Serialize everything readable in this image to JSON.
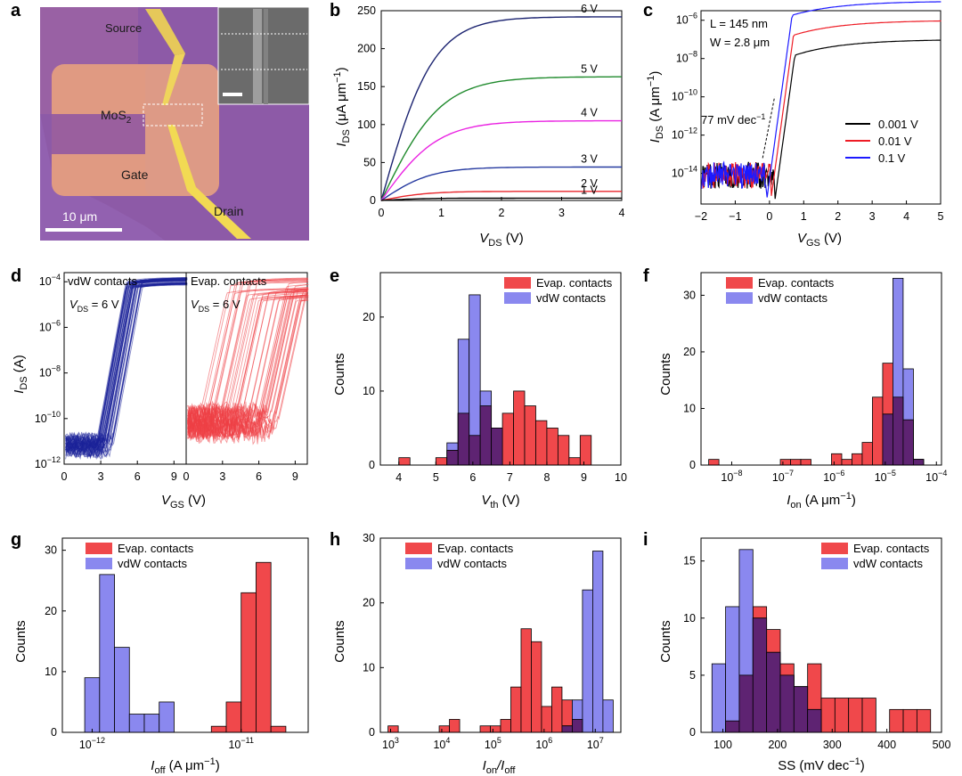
{
  "colors": {
    "evap": "#f0484b",
    "vdw": "#8a88ef",
    "overlap": "#5e2372",
    "dev": "#28337e",
    "c_black": "#000000",
    "c_red": "#ee1c25",
    "c_blue": "#1d1aff",
    "d_vdw": "#1c2299",
    "d_evap": "#ee3f46",
    "b_6": "#1b2370",
    "b_5": "#1f8a2c",
    "b_4": "#ea23e2",
    "b_3": "#263aa0",
    "b_2": "#e8262c",
    "b_1": "#000000"
  },
  "panels": {
    "a": {
      "label": "a",
      "texts": {
        "source": "Source",
        "mos2": "MoS",
        "mos2_sub": "2",
        "gate": "Gate",
        "drain": "Drain",
        "scale": "10 μm"
      }
    },
    "b": {
      "label": "b"
    },
    "c": {
      "label": "c"
    },
    "d": {
      "label": "d"
    },
    "e": {
      "label": "e"
    },
    "f": {
      "label": "f"
    },
    "g": {
      "label": "g"
    },
    "h": {
      "label": "h"
    },
    "i": {
      "label": "i"
    }
  },
  "chart_data": [
    {
      "id": "b",
      "type": "line",
      "xlabel": "V",
      "xlabel_sub": "DS",
      "xlabel_unit": " (V)",
      "ylabel": "I",
      "ylabel_sub": "DS",
      "ylabel_unit": " (μA μm",
      "ylabel_sup": "−1",
      "ylabel_close": ")",
      "xlim": [
        0,
        4
      ],
      "ylim": [
        0,
        250
      ],
      "xticks": [
        "0",
        "1",
        "2",
        "3",
        "4"
      ],
      "yticks": [
        "0",
        "50",
        "100",
        "150",
        "200",
        "250"
      ],
      "series": [
        {
          "name": "6 V",
          "sat": 242,
          "k": 1.15,
          "color_key": "b_6"
        },
        {
          "name": "5 V",
          "sat": 163,
          "k": 1.0,
          "color_key": "b_5"
        },
        {
          "name": "4 V",
          "sat": 105,
          "k": 1.05,
          "color_key": "b_4"
        },
        {
          "name": "3 V",
          "sat": 44,
          "k": 1.2,
          "color_key": "b_3"
        },
        {
          "name": "2 V",
          "sat": 12,
          "k": 1.3,
          "color_key": "b_2"
        },
        {
          "name": "1 V",
          "sat": 3,
          "k": 1.5,
          "color_key": "b_1"
        }
      ]
    },
    {
      "id": "c",
      "type": "line",
      "yscale": "log",
      "xlabel": "V",
      "xlabel_sub": "GS",
      "xlabel_unit": " (V)",
      "ylabel": "I",
      "ylabel_sub": "DS",
      "ylabel_unit": " (A μm",
      "ylabel_sup": "−1",
      "ylabel_close": ")",
      "xlim": [
        -2,
        5
      ],
      "ylim_log10": [
        -15.6,
        -5.5
      ],
      "xticks": [
        "−2",
        "−1",
        "0",
        "1",
        "2",
        "3",
        "4",
        "5"
      ],
      "yticks": [
        {
          "base": "10",
          "exp": "−14"
        },
        {
          "base": "10",
          "exp": "−12"
        },
        {
          "base": "10",
          "exp": "−10"
        },
        {
          "base": "10",
          "exp": "−8"
        },
        {
          "base": "10",
          "exp": "−6"
        }
      ],
      "annotations": {
        "length": "L = 145 nm",
        "width": "W = 2.8 μm",
        "ss": "77 mV dec",
        "ss_sup": "−1"
      },
      "series": [
        {
          "name": "0.001 V",
          "vt": 0.12,
          "sat_log": -7.0,
          "color_key": "c_black"
        },
        {
          "name": "0.01 V",
          "vt": 0.0,
          "sat_log": -6.0,
          "color_key": "c_red"
        },
        {
          "name": "0.1 V",
          "vt": -0.12,
          "sat_log": -5.0,
          "color_key": "c_blue"
        }
      ]
    },
    {
      "id": "d",
      "type": "line",
      "yscale": "log",
      "xlabel": "V",
      "xlabel_sub": "GS",
      "xlabel_unit": " (V)",
      "ylabel": "I",
      "ylabel_sub": "DS",
      "ylabel_unit": " (A)",
      "xlim": [
        0,
        10
      ],
      "ylim_log10": [
        -12,
        -3.6
      ],
      "xticks": [
        "0",
        "3",
        "6",
        "9"
      ],
      "yticks": [
        {
          "base": "10",
          "exp": "−12"
        },
        {
          "base": "10",
          "exp": "−10"
        },
        {
          "base": "10",
          "exp": "−8"
        },
        {
          "base": "10",
          "exp": "−6"
        },
        {
          "base": "10",
          "exp": "−4"
        }
      ],
      "subpanels": [
        {
          "title": "vdW contacts",
          "vds": "V",
          "vds_sub": "DS",
          "vds_val": " = 6 V",
          "color_key": "d_vdw",
          "vt_range": [
            2.6,
            4.0
          ],
          "off_log": -11.2
        },
        {
          "title": "Evap. contacts",
          "vds": "V",
          "vds_sub": "DS",
          "vds_val": " = 6 V",
          "color_key": "d_evap",
          "vt_range": [
            1.0,
            7.5
          ],
          "off_log": -10.2
        }
      ]
    },
    {
      "id": "e",
      "type": "histogram",
      "xlabel": "V",
      "xlabel_sub": "th",
      "xlabel_unit": " (V)",
      "ylabel": "Counts",
      "xlim": [
        3.5,
        10
      ],
      "ylim": [
        0,
        26
      ],
      "xticks": [
        {
          "v": 4,
          "t": "4"
        },
        {
          "v": 5,
          "t": "5"
        },
        {
          "v": 6,
          "t": "6"
        },
        {
          "v": 7,
          "t": "7"
        },
        {
          "v": 8,
          "t": "8"
        },
        {
          "v": 9,
          "t": "9"
        },
        {
          "v": 10,
          "t": "10"
        }
      ],
      "yticks": [
        {
          "v": 0,
          "t": "0"
        },
        {
          "v": 10,
          "t": "10"
        },
        {
          "v": 20,
          "t": "20"
        }
      ],
      "series": [
        {
          "name": "Evap. contacts",
          "color_key": "evap",
          "bins": [
            [
              4.0,
              4.3,
              1
            ],
            [
              5.0,
              5.3,
              1
            ],
            [
              5.3,
              5.6,
              2
            ],
            [
              5.6,
              5.9,
              7
            ],
            [
              5.9,
              6.2,
              4
            ],
            [
              6.2,
              6.5,
              8
            ],
            [
              6.5,
              6.8,
              5
            ],
            [
              6.8,
              7.1,
              7
            ],
            [
              7.1,
              7.4,
              10
            ],
            [
              7.4,
              7.7,
              8
            ],
            [
              7.7,
              8.0,
              6
            ],
            [
              8.0,
              8.3,
              5
            ],
            [
              8.3,
              8.6,
              4
            ],
            [
              8.6,
              8.9,
              1
            ],
            [
              8.9,
              9.2,
              4
            ]
          ]
        },
        {
          "name": "vdW contacts",
          "color_key": "vdw",
          "bins": [
            [
              5.3,
              5.6,
              3
            ],
            [
              5.6,
              5.9,
              17
            ],
            [
              5.9,
              6.2,
              23
            ],
            [
              6.2,
              6.5,
              10
            ],
            [
              6.5,
              6.8,
              5
            ]
          ]
        }
      ]
    },
    {
      "id": "f",
      "type": "histogram",
      "xscale": "log",
      "xlabel": "I",
      "xlabel_sub": "on",
      "xlabel_unit": " (A μm",
      "xlabel_sup": "−1",
      "xlabel_close": ")",
      "ylabel": "Counts",
      "xlim": [
        -8.6,
        -3.9
      ],
      "ylim": [
        0,
        34
      ],
      "xticks": [
        {
          "v": -8,
          "t": "10",
          "sup": "−8"
        },
        {
          "v": -7,
          "t": "10",
          "sup": "−7"
        },
        {
          "v": -6,
          "t": "10",
          "sup": "−6"
        },
        {
          "v": -5,
          "t": "10",
          "sup": "−5"
        },
        {
          "v": -4,
          "t": "10",
          "sup": "−4"
        }
      ],
      "yticks": [
        {
          "v": 0,
          "t": "0"
        },
        {
          "v": 10,
          "t": "10"
        },
        {
          "v": 20,
          "t": "20"
        },
        {
          "v": 30,
          "t": "30"
        }
      ],
      "series": [
        {
          "name": "Evap. contacts",
          "color_key": "evap",
          "bins": [
            [
              -8.45,
              -8.25,
              1
            ],
            [
              -7.05,
              -6.85,
              1
            ],
            [
              -6.85,
              -6.65,
              1
            ],
            [
              -6.65,
              -6.45,
              1
            ],
            [
              -6.05,
              -5.85,
              2
            ],
            [
              -5.85,
              -5.65,
              1
            ],
            [
              -5.65,
              -5.45,
              2
            ],
            [
              -5.45,
              -5.25,
              4
            ],
            [
              -5.25,
              -5.05,
              12
            ],
            [
              -5.05,
              -4.85,
              18
            ],
            [
              -4.85,
              -4.65,
              12
            ],
            [
              -4.65,
              -4.45,
              8
            ],
            [
              -4.45,
              -4.25,
              1
            ]
          ]
        },
        {
          "name": "vdW contacts",
          "color_key": "vdw",
          "bins": [
            [
              -5.05,
              -4.85,
              9
            ],
            [
              -4.85,
              -4.65,
              33
            ],
            [
              -4.65,
              -4.45,
              17
            ],
            [
              -4.45,
              -4.25,
              1
            ]
          ]
        }
      ]
    },
    {
      "id": "g",
      "type": "histogram",
      "xscale": "log",
      "xlabel": "I",
      "xlabel_sub": "off",
      "xlabel_unit": " (A μm",
      "xlabel_sup": "−1",
      "xlabel_close": ")",
      "ylabel": "Counts",
      "xlim": [
        -12.2,
        -10.55
      ],
      "ylim": [
        0,
        32
      ],
      "xticks": [
        {
          "v": -12,
          "t": "10",
          "sup": "−12"
        },
        {
          "v": -11,
          "t": "10",
          "sup": "−11"
        }
      ],
      "yticks": [
        {
          "v": 0,
          "t": "0"
        },
        {
          "v": 10,
          "t": "10"
        },
        {
          "v": 20,
          "t": "20"
        },
        {
          "v": 30,
          "t": "30"
        }
      ],
      "series": [
        {
          "name": "Evap. contacts",
          "color_key": "evap",
          "bins": [
            [
              -11.7,
              -11.6,
              2
            ],
            [
              -11.2,
              -11.1,
              1
            ],
            [
              -11.1,
              -11.0,
              5
            ],
            [
              -11.0,
              -10.9,
              23
            ],
            [
              -10.9,
              -10.8,
              28
            ],
            [
              -10.8,
              -10.7,
              1
            ]
          ]
        },
        {
          "name": "vdW contacts",
          "color_key": "vdw",
          "bins": [
            [
              -12.05,
              -11.95,
              9
            ],
            [
              -11.95,
              -11.85,
              26
            ],
            [
              -11.85,
              -11.75,
              14
            ],
            [
              -11.75,
              -11.65,
              3
            ],
            [
              -11.65,
              -11.55,
              3
            ],
            [
              -11.55,
              -11.45,
              5
            ]
          ]
        }
      ]
    },
    {
      "id": "h",
      "type": "histogram",
      "xscale": "log",
      "xlabel": "I",
      "xlabel_sub": "on",
      "xlabel_mid": "/I",
      "xlabel_sub2": "off",
      "ylabel": "Counts",
      "xlim": [
        2.8,
        7.5
      ],
      "ylim": [
        0,
        30
      ],
      "xticks": [
        {
          "v": 3,
          "t": "10",
          "sup": "3"
        },
        {
          "v": 4,
          "t": "10",
          "sup": "4"
        },
        {
          "v": 5,
          "t": "10",
          "sup": "5"
        },
        {
          "v": 6,
          "t": "10",
          "sup": "6"
        },
        {
          "v": 7,
          "t": "10",
          "sup": "7"
        }
      ],
      "yticks": [
        {
          "v": 0,
          "t": "0"
        },
        {
          "v": 10,
          "t": "10"
        },
        {
          "v": 20,
          "t": "20"
        },
        {
          "v": 30,
          "t": "30"
        }
      ],
      "series": [
        {
          "name": "Evap. contacts",
          "color_key": "evap",
          "bins": [
            [
              2.95,
              3.15,
              1
            ],
            [
              3.95,
              4.15,
              1
            ],
            [
              4.15,
              4.35,
              2
            ],
            [
              4.75,
              4.95,
              1
            ],
            [
              4.95,
              5.15,
              1
            ],
            [
              5.15,
              5.35,
              2
            ],
            [
              5.35,
              5.55,
              7
            ],
            [
              5.55,
              5.75,
              16
            ],
            [
              5.75,
              5.95,
              14
            ],
            [
              5.95,
              6.15,
              4
            ],
            [
              6.15,
              6.35,
              7
            ],
            [
              6.35,
              6.55,
              5
            ],
            [
              6.55,
              6.75,
              2
            ]
          ]
        },
        {
          "name": "vdW contacts",
          "color_key": "vdw",
          "bins": [
            [
              6.35,
              6.55,
              1
            ],
            [
              6.55,
              6.75,
              5
            ],
            [
              6.75,
              6.95,
              22
            ],
            [
              6.95,
              7.15,
              28
            ],
            [
              7.15,
              7.35,
              5
            ]
          ]
        }
      ]
    },
    {
      "id": "i",
      "type": "histogram",
      "xlabel": "SS (mV dec",
      "xlabel_sup": "−1",
      "xlabel_close": ")",
      "ylabel": "Counts",
      "xlim": [
        60,
        500
      ],
      "ylim": [
        0,
        17
      ],
      "xticks": [
        {
          "v": 100,
          "t": "100"
        },
        {
          "v": 200,
          "t": "200"
        },
        {
          "v": 300,
          "t": "300"
        },
        {
          "v": 400,
          "t": "400"
        },
        {
          "v": 500,
          "t": "500"
        }
      ],
      "yticks": [
        {
          "v": 0,
          "t": "0"
        },
        {
          "v": 5,
          "t": "5"
        },
        {
          "v": 10,
          "t": "10"
        },
        {
          "v": 15,
          "t": "15"
        }
      ],
      "series": [
        {
          "name": "Evap. contacts",
          "color_key": "evap",
          "bins": [
            [
              105,
              130,
              1
            ],
            [
              130,
              155,
              5
            ],
            [
              155,
              180,
              11
            ],
            [
              180,
              205,
              9
            ],
            [
              205,
              230,
              6
            ],
            [
              230,
              255,
              4
            ],
            [
              255,
              280,
              6
            ],
            [
              280,
              305,
              3
            ],
            [
              305,
              330,
              3
            ],
            [
              330,
              355,
              3
            ],
            [
              355,
              380,
              3
            ],
            [
              405,
              430,
              2
            ],
            [
              430,
              455,
              2
            ],
            [
              455,
              480,
              2
            ]
          ]
        },
        {
          "name": "vdW contacts",
          "color_key": "vdw",
          "bins": [
            [
              80,
              105,
              6
            ],
            [
              105,
              130,
              11
            ],
            [
              130,
              155,
              16
            ],
            [
              155,
              180,
              10
            ],
            [
              180,
              205,
              7
            ],
            [
              205,
              230,
              5
            ],
            [
              230,
              255,
              4
            ],
            [
              255,
              280,
              2
            ]
          ]
        }
      ]
    }
  ]
}
